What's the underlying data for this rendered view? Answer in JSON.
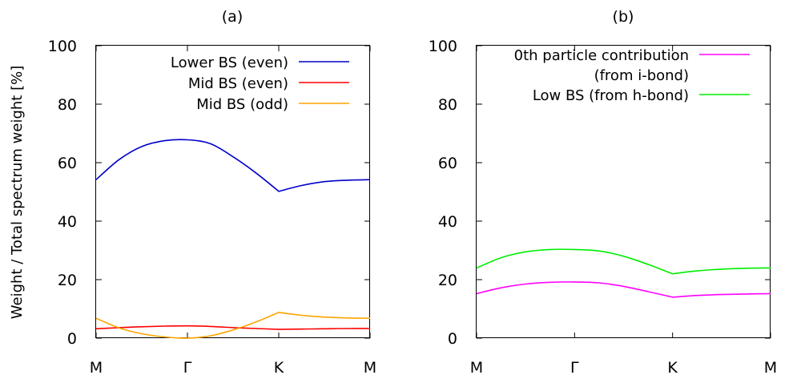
{
  "ylabel": "Weight / Total spectrum weight [%]",
  "chart_data": [
    {
      "type": "line",
      "title": "(a)",
      "xlabel": "",
      "ylabel": "Weight / Total spectrum weight [%]",
      "ylim": [
        0,
        100
      ],
      "yticks": [
        0,
        20,
        40,
        60,
        80,
        100
      ],
      "xlim": [
        0,
        3
      ],
      "xticks": [
        0,
        1,
        2,
        3
      ],
      "xtick_labels": [
        "M",
        "Γ",
        "K",
        "M"
      ],
      "legend_position": "top-right",
      "series": [
        {
          "name": "Lower BS (even)",
          "color": "#0000cc",
          "x": [
            0,
            0.25,
            0.5,
            0.75,
            1.0,
            1.25,
            1.5,
            1.75,
            2.0,
            2.25,
            2.5,
            2.75,
            3.0
          ],
          "y": [
            54.2,
            61.0,
            65.5,
            67.5,
            67.8,
            66.5,
            62.0,
            56.5,
            50.2,
            52.2,
            53.5,
            54.0,
            54.2
          ]
        },
        {
          "name": "Mid BS (even)",
          "color": "#ff0000",
          "x": [
            0,
            0.25,
            0.5,
            0.75,
            1.0,
            1.25,
            1.5,
            1.75,
            2.0,
            2.25,
            2.5,
            2.75,
            3.0
          ],
          "y": [
            3.2,
            3.6,
            3.9,
            4.1,
            4.2,
            4.0,
            3.6,
            3.3,
            3.0,
            3.1,
            3.2,
            3.3,
            3.3
          ]
        },
        {
          "name": "Mid BS (odd)",
          "color": "#ffa500",
          "x": [
            0,
            0.25,
            0.5,
            0.75,
            1.0,
            1.25,
            1.5,
            1.75,
            2.0,
            2.25,
            2.5,
            2.75,
            3.0
          ],
          "y": [
            6.8,
            3.5,
            1.5,
            0.4,
            0.0,
            0.8,
            2.8,
            5.5,
            8.8,
            7.8,
            7.2,
            6.9,
            6.8
          ]
        }
      ]
    },
    {
      "type": "line",
      "title": "(b)",
      "xlabel": "",
      "ylabel": "",
      "ylim": [
        0,
        100
      ],
      "yticks": [
        0,
        20,
        40,
        60,
        80,
        100
      ],
      "xlim": [
        0,
        3
      ],
      "xticks": [
        0,
        1,
        2,
        3
      ],
      "xtick_labels": [
        "M",
        "Γ",
        "K",
        "M"
      ],
      "legend_position": "top-right",
      "series": [
        {
          "name": "0th particle contribution",
          "name_line2": "(from i-bond)",
          "color": "#ff00ff",
          "x": [
            0,
            0.25,
            0.5,
            0.75,
            1.0,
            1.25,
            1.5,
            1.75,
            2.0,
            2.25,
            2.5,
            2.75,
            3.0
          ],
          "y": [
            15.2,
            17.2,
            18.5,
            19.1,
            19.2,
            18.9,
            17.7,
            15.9,
            14.0,
            14.6,
            14.9,
            15.1,
            15.2
          ]
        },
        {
          "name": "Low BS (from h-bond)",
          "color": "#00ee00",
          "x": [
            0,
            0.25,
            0.5,
            0.75,
            1.0,
            1.25,
            1.5,
            1.75,
            2.0,
            2.25,
            2.5,
            2.75,
            3.0
          ],
          "y": [
            24.0,
            27.5,
            29.5,
            30.3,
            30.3,
            29.8,
            28.0,
            25.2,
            22.0,
            23.0,
            23.6,
            23.9,
            24.0
          ]
        }
      ]
    }
  ]
}
